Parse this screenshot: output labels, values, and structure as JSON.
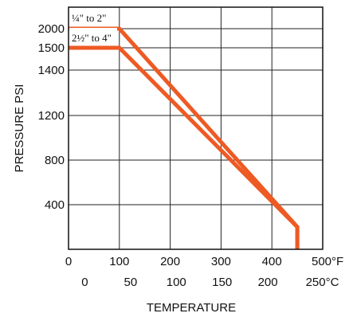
{
  "chart_data": {
    "type": "line",
    "xlabel": "TEMPERATURE",
    "ylabel": "PRESSURE PSI",
    "x_axis_f": {
      "unit_label": "°F",
      "ticks": [
        "0",
        "100",
        "200",
        "300",
        "400",
        "500°F"
      ],
      "range": [
        0,
        500
      ]
    },
    "x_axis_c": {
      "ticks": [
        "0",
        "50",
        "100",
        "150",
        "200",
        "250°C"
      ],
      "tick_values_c": [
        0,
        50,
        100,
        150,
        200,
        250
      ]
    },
    "y_axis": {
      "ticks": [
        "400",
        "800",
        "1200",
        "1400",
        "1500",
        "2000"
      ],
      "tick_values": [
        400,
        800,
        1200,
        1400,
        1500,
        2000
      ]
    },
    "grid": true,
    "series": [
      {
        "name": "¼\" to 2\"",
        "color": "#ee5a24",
        "points": [
          {
            "t_f": 0,
            "p": 2000
          },
          {
            "t_f": 100,
            "p": 2000
          },
          {
            "t_f": 450,
            "p": 200
          },
          {
            "t_f": 450,
            "p": 0
          }
        ]
      },
      {
        "name": "2½\" to 4\"",
        "color": "#ee5a24",
        "points": [
          {
            "t_f": 0,
            "p": 1500
          },
          {
            "t_f": 100,
            "p": 1500
          },
          {
            "t_f": 450,
            "p": 200
          },
          {
            "t_f": 450,
            "p": 0
          }
        ]
      }
    ]
  }
}
